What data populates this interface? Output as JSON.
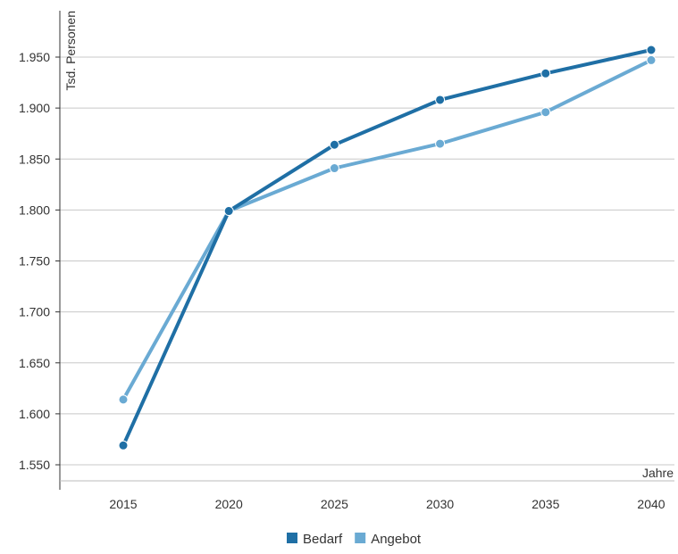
{
  "chart_data": {
    "type": "line",
    "title": "",
    "ylabel": "Tsd. Personen",
    "xlabel": "Jahre",
    "categories": [
      "2015",
      "2020",
      "2025",
      "2030",
      "2035",
      "2040"
    ],
    "y_tick_labels": [
      "1.550",
      "1.600",
      "1.650",
      "1.700",
      "1.750",
      "1.800",
      "1.850",
      "1.900",
      "1.950"
    ],
    "y_ticks": [
      1550,
      1600,
      1650,
      1700,
      1750,
      1800,
      1850,
      1900,
      1950
    ],
    "ylim": [
      1540,
      1990
    ],
    "grid": true,
    "legend_position": "bottom-center",
    "series": [
      {
        "name": "Bedarf",
        "color": "#1f6fa5",
        "values": [
          1569,
          1799,
          1864,
          1908,
          1934,
          1957
        ]
      },
      {
        "name": "Angebot",
        "color": "#6aaad3",
        "values": [
          1614,
          1799,
          1841,
          1865,
          1896,
          1947
        ]
      }
    ]
  }
}
